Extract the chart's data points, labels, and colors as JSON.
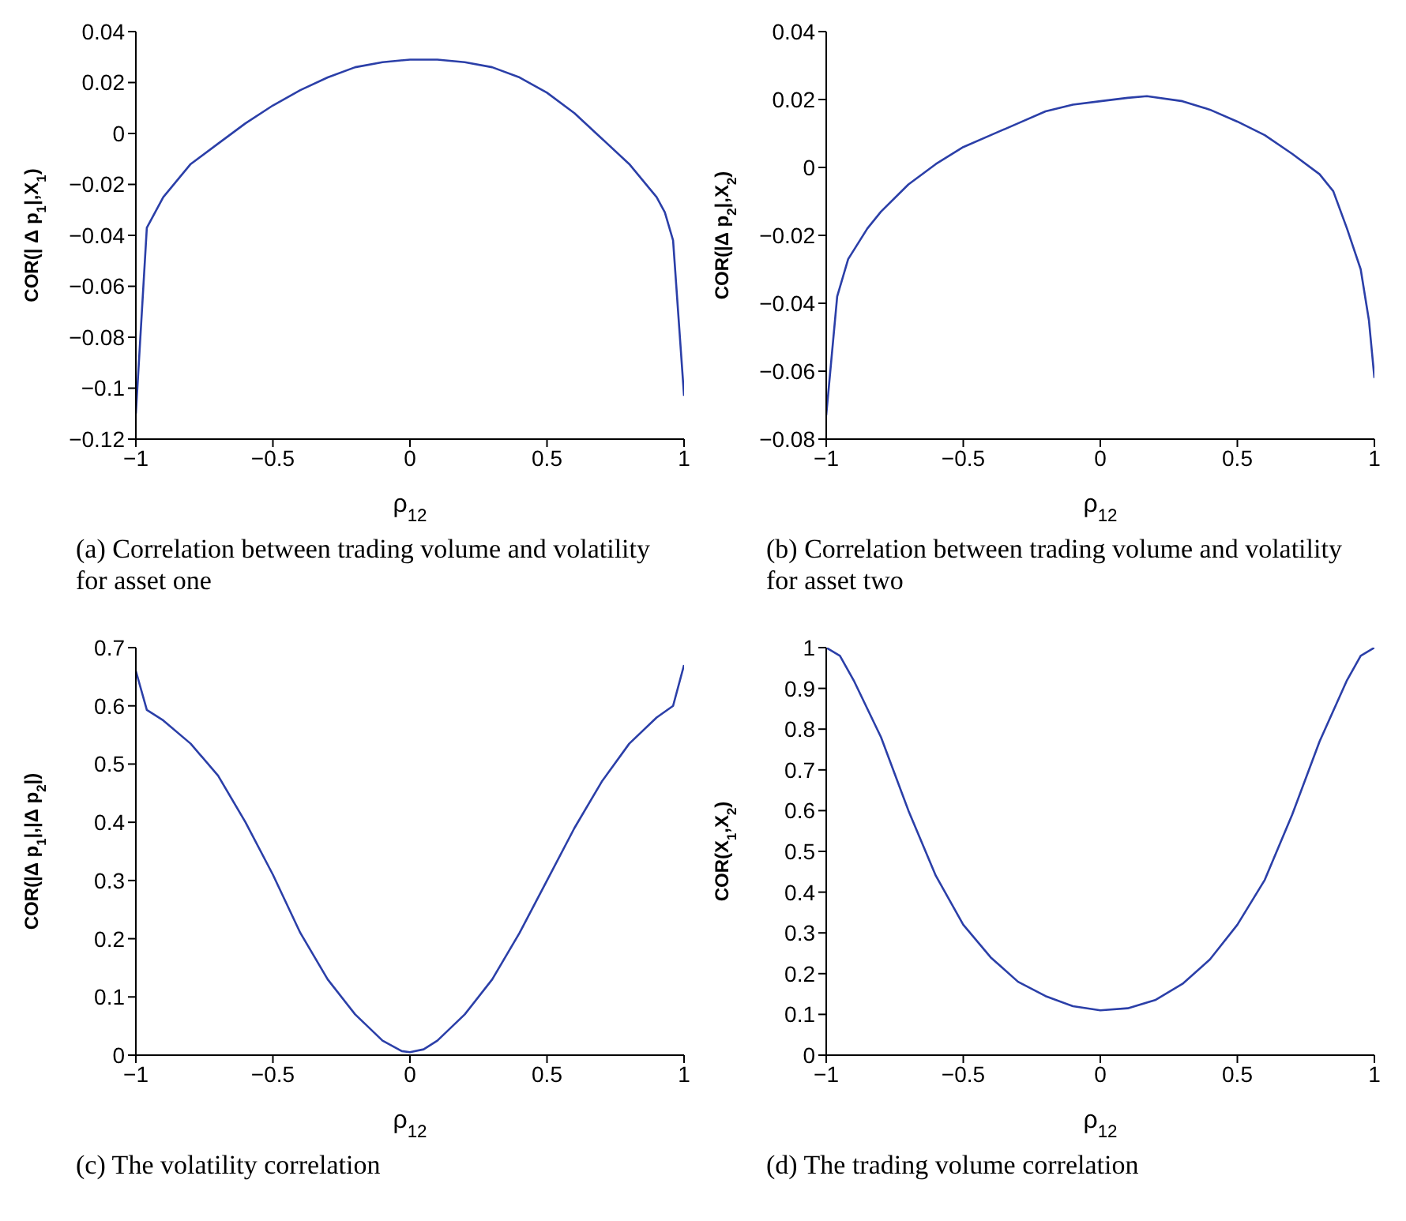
{
  "chart_data": [
    {
      "type": "line",
      "title": "(a) Correlation between trading volume and volatility for asset one",
      "xlabel": "ρ$_{12}$",
      "ylabel": "COR(| Δ p$_{1}$|,X$_{1}$)",
      "x": [
        -1,
        -0.96,
        -0.9,
        -0.8,
        -0.7,
        -0.6,
        -0.5,
        -0.4,
        -0.3,
        -0.2,
        -0.1,
        0,
        0.1,
        0.2,
        0.3,
        0.4,
        0.5,
        0.6,
        0.7,
        0.8,
        0.9,
        0.93,
        0.96,
        1
      ],
      "series": [
        {
          "color": "#2b3fa8",
          "values": [
            -0.11,
            -0.037,
            -0.025,
            -0.012,
            -0.004,
            0.004,
            0.011,
            0.017,
            0.022,
            0.026,
            0.028,
            0.029,
            0.029,
            0.028,
            0.026,
            0.022,
            0.016,
            0.008,
            -0.002,
            -0.012,
            -0.025,
            -0.031,
            -0.042,
            -0.103
          ]
        }
      ],
      "xlim": [
        -1,
        1
      ],
      "xticks": [
        -1,
        -0.5,
        0,
        0.5,
        1
      ],
      "ylim": [
        -0.12,
        0.04
      ],
      "yticks": [
        -0.12,
        -0.1,
        -0.08,
        -0.06,
        -0.04,
        -0.02,
        0,
        0.02,
        0.04
      ],
      "grid": false,
      "legend": false
    },
    {
      "type": "line",
      "title": "(b) Correlation between trading volume and volatility for asset two",
      "xlabel": "ρ$_{12}$",
      "ylabel": "COR(|Δ p$_{2}$|,X$_{2}$)",
      "x": [
        -1,
        -0.96,
        -0.92,
        -0.85,
        -0.8,
        -0.7,
        -0.6,
        -0.5,
        -0.4,
        -0.3,
        -0.2,
        -0.1,
        0,
        0.1,
        0.17,
        0.3,
        0.4,
        0.5,
        0.6,
        0.7,
        0.8,
        0.85,
        0.9,
        0.95,
        0.98,
        1
      ],
      "series": [
        {
          "color": "#2b3fa8",
          "values": [
            -0.073,
            -0.038,
            -0.027,
            -0.018,
            -0.013,
            -0.005,
            0.001,
            0.006,
            0.0095,
            0.013,
            0.0165,
            0.0185,
            0.0195,
            0.0205,
            0.021,
            0.0195,
            0.017,
            0.0135,
            0.0095,
            0.004,
            -0.002,
            -0.007,
            -0.018,
            -0.03,
            -0.045,
            -0.062
          ]
        }
      ],
      "xlim": [
        -1,
        1
      ],
      "xticks": [
        -1,
        -0.5,
        0,
        0.5,
        1
      ],
      "ylim": [
        -0.08,
        0.04
      ],
      "yticks": [
        -0.08,
        -0.06,
        -0.04,
        -0.02,
        0,
        0.02,
        0.04
      ],
      "grid": false,
      "legend": false
    },
    {
      "type": "line",
      "title": "(c) The volatility correlation",
      "xlabel": "ρ$_{12}$",
      "ylabel": "COR(|Δ p$_{1}$|,|Δ p$_{2}$|)",
      "x": [
        -1,
        -0.96,
        -0.9,
        -0.8,
        -0.7,
        -0.6,
        -0.5,
        -0.4,
        -0.3,
        -0.2,
        -0.1,
        -0.03,
        0,
        0.05,
        0.1,
        0.2,
        0.3,
        0.4,
        0.5,
        0.6,
        0.7,
        0.8,
        0.9,
        0.96,
        1
      ],
      "series": [
        {
          "color": "#2b3fa8",
          "values": [
            0.66,
            0.593,
            0.575,
            0.535,
            0.48,
            0.4,
            0.31,
            0.21,
            0.13,
            0.07,
            0.025,
            0.007,
            0.005,
            0.01,
            0.025,
            0.07,
            0.13,
            0.21,
            0.3,
            0.39,
            0.47,
            0.535,
            0.58,
            0.6,
            0.67
          ]
        }
      ],
      "xlim": [
        -1,
        1
      ],
      "xticks": [
        -1,
        -0.5,
        0,
        0.5,
        1
      ],
      "ylim": [
        0,
        0.7
      ],
      "yticks": [
        0,
        0.1,
        0.2,
        0.3,
        0.4,
        0.5,
        0.6,
        0.7
      ],
      "grid": false,
      "legend": false
    },
    {
      "type": "line",
      "title": "(d) The trading volume correlation",
      "xlabel": "ρ$_{12}$",
      "ylabel": "COR(X$_{1}$,X$_{2}$)",
      "x": [
        -1,
        -0.95,
        -0.9,
        -0.8,
        -0.7,
        -0.6,
        -0.5,
        -0.4,
        -0.3,
        -0.2,
        -0.1,
        0,
        0.1,
        0.2,
        0.3,
        0.4,
        0.5,
        0.6,
        0.7,
        0.8,
        0.9,
        0.95,
        1
      ],
      "series": [
        {
          "color": "#2b3fa8",
          "values": [
            1.0,
            0.98,
            0.92,
            0.78,
            0.6,
            0.44,
            0.32,
            0.24,
            0.18,
            0.145,
            0.12,
            0.11,
            0.115,
            0.135,
            0.175,
            0.235,
            0.32,
            0.43,
            0.59,
            0.77,
            0.92,
            0.98,
            1.0
          ]
        }
      ],
      "xlim": [
        -1,
        1
      ],
      "xticks": [
        -1,
        -0.5,
        0,
        0.5,
        1
      ],
      "ylim": [
        0,
        1
      ],
      "yticks": [
        0,
        0.1,
        0.2,
        0.3,
        0.4,
        0.5,
        0.6,
        0.7,
        0.8,
        0.9,
        1
      ],
      "grid": false,
      "legend": false
    }
  ]
}
